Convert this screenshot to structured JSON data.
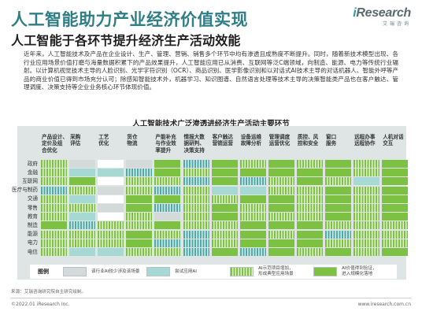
{
  "header": {
    "title": "人工智能助力产业经济价值实现",
    "logo_i": "i",
    "logo_rest": "Research",
    "logo_sub": "艾瑞咨询"
  },
  "subtitle": "人工智能于各环节提升经济生产活动效能",
  "body_text": "近年来，人工智能技术及产品在企业设计、生产、管理、营销、销售多个环节中均有渗透且成熟度不断提升。同时，随着新技术模型出现、各行业应用场景价值打磨与海量数据积累下的产品效果提升，人工智能应用已从消费、互联网等泛C端领域，向制造、能源、电力等传统行业辐射。以计算机视觉技术主导的人脸识别、光学字符识别（OCR）、商品识别、医学影像识别和以对话式AI技术主导的对话机器人、智能外呼等产品的商业价值已得到市场充分认可；除感知智能技术外，机器学习、知识图谱、自然语言处理等技术主导的决策智能类产品也在客户触达、管理调度、决策支持等企业业务核心环节体现价值。",
  "chart": {
    "title": "人工智能技术广泛渗透进经济生产活动主要环节",
    "columns": [
      [
        "产品设计、",
        "定价及组",
        "合优化"
      ],
      [
        "采购",
        "评估"
      ],
      [
        "工艺",
        "优化"
      ],
      [
        "货仓",
        "物流"
      ],
      [
        "产能补充",
        "与作业效",
        "率提升"
      ],
      [
        "情报大数",
        "据研判、",
        "决策支持"
      ],
      [
        "客户触达",
        "营销运营"
      ],
      [
        "设备运维",
        "故障分析"
      ],
      [
        "管理调度",
        "运营优化"
      ],
      [
        "质控、风",
        "控和安全"
      ],
      [
        "窗口",
        "服务"
      ],
      [
        "远程办事",
        "远程协作"
      ],
      [
        "人机对话",
        "交互"
      ]
    ],
    "rows": [
      "政府",
      "金融",
      "互联网",
      "医疗与制药",
      "交通",
      "零售",
      "教育",
      "制造",
      "能源",
      "电力",
      "电信"
    ],
    "grid": [
      [
        "gh",
        "gray",
        "blank",
        "gray",
        "green",
        "th",
        "green",
        "gh",
        "green",
        "gh",
        "green",
        "gh",
        "green"
      ],
      [
        "gh",
        "teal",
        "teal",
        "th",
        "green",
        "gh",
        "green",
        "green",
        "green",
        "green",
        "green",
        "gh",
        "green"
      ],
      [
        "gh",
        "green",
        "blank",
        "gh",
        "gh",
        "th",
        "green",
        "th",
        "gh",
        "green",
        "gh",
        "teal",
        "green"
      ],
      [
        "th",
        "gh",
        "gray",
        "gh",
        "th",
        "gh",
        "teal",
        "teal",
        "gh",
        "gh",
        "green",
        "gh",
        "green"
      ],
      [
        "gh",
        "teal",
        "blank",
        "green",
        "green",
        "gh",
        "gh",
        "green",
        "green",
        "gh",
        "green",
        "gh",
        "green"
      ],
      [
        "gh",
        "gh",
        "gray",
        "green",
        "th",
        "gh",
        "green",
        "gh",
        "green",
        "gh",
        "green",
        "gh",
        "green"
      ],
      [
        "gh",
        "teal",
        "blank",
        "gh",
        "gray",
        "gh",
        "green",
        "gh",
        "gh",
        "gh",
        "green",
        "gh",
        "green"
      ],
      [
        "green",
        "th",
        "gh",
        "gh",
        "green",
        "gh",
        "gh",
        "green",
        "green",
        "green",
        "gh",
        "gh",
        "gh"
      ],
      [
        "gh",
        "gh",
        "gh",
        "green",
        "gh",
        "th",
        "gh",
        "green",
        "gh",
        "green",
        "th",
        "gh",
        "gh"
      ],
      [
        "gh",
        "gh",
        "gh",
        "green",
        "th",
        "th",
        "gh",
        "green",
        "green",
        "green",
        "gh",
        "gh",
        "gh"
      ],
      [
        "gh",
        "teal",
        "teal",
        "gh",
        "gh",
        "th",
        "green",
        "th",
        "green",
        "gh",
        "green",
        "gh",
        "green"
      ]
    ],
    "legend": {
      "title": "图例",
      "items": [
        {
          "pattern": "gray",
          "text": [
            "该行业AI较少涉及该场景"
          ]
        },
        {
          "pattern": "teal",
          "text": [
            "尝试应用AI"
          ]
        },
        {
          "pattern": "gh",
          "text": [
            "AI示范项目增加，",
            "形成典型应用场景"
          ]
        },
        {
          "pattern": "green",
          "text": [
            "AI价值得到验证，",
            "进入规模化落地"
          ]
        }
      ]
    }
  },
  "note": "来源：艾瑞咨询研究院自主研究绘制。",
  "footer": {
    "left": "©2022.01 iResearch Inc.",
    "right": "www.iresearch.com.cn"
  },
  "colors": {
    "title_teal": "#2f7e86",
    "green": "#7dc142",
    "teal": "#a6d9d4",
    "gray": "#d4d9da"
  }
}
